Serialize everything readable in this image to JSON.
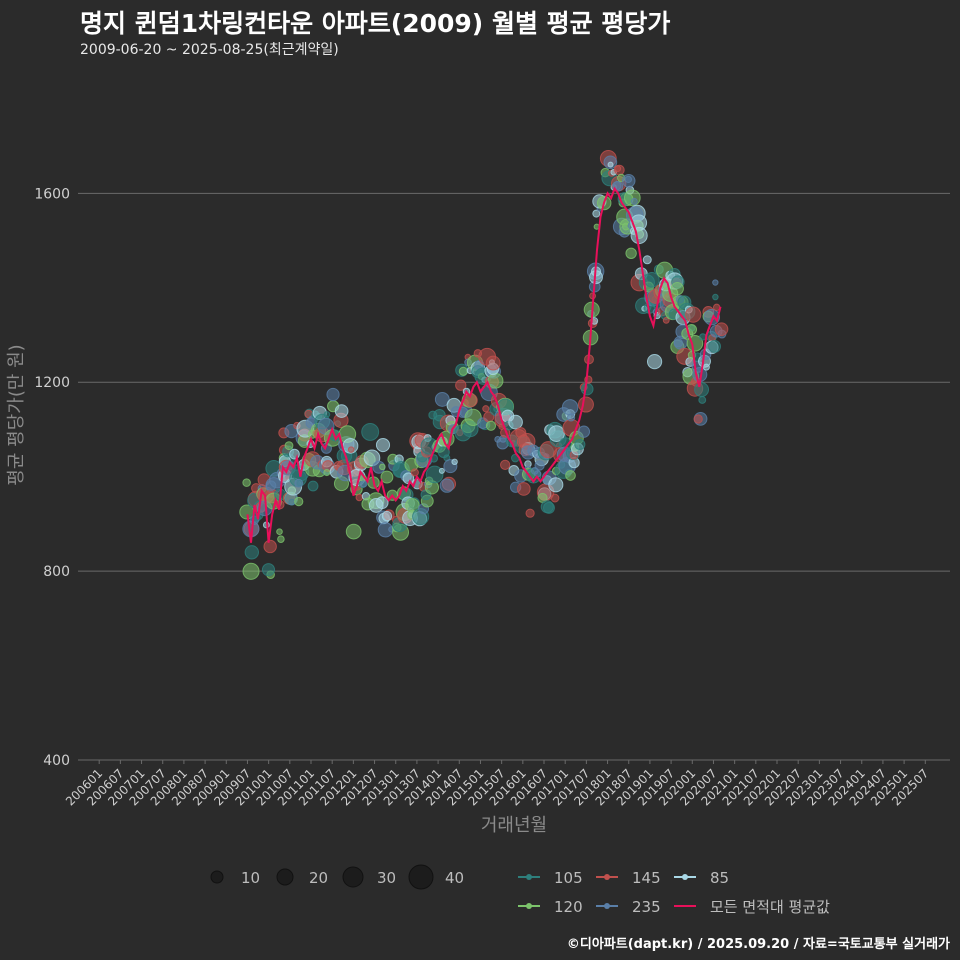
{
  "header": {
    "title": "명지 퀸덤1차링컨타운 아파트(2009) 월별 평균 평당가",
    "subtitle": "2009-06-20 ~ 2025-08-25(최근계약일)",
    "caption": "©디아파트(dapt.kr) / 2025.09.20 / 자료=국토교통부 실거래가"
  },
  "chart_data": {
    "type": "line",
    "xlabel": "거래년월",
    "ylabel": "평균 평당가(만 원)",
    "x_range": [
      "2005-07",
      "2026-02"
    ],
    "ylim": [
      400,
      1840
    ],
    "yticks": [
      400,
      800,
      1200,
      1600
    ],
    "grid": true,
    "xtick_labels": [
      "200601",
      "200607",
      "200701",
      "200707",
      "200801",
      "200807",
      "200901",
      "200907",
      "201001",
      "201007",
      "201101",
      "201107",
      "201201",
      "201207",
      "201301",
      "201307",
      "201401",
      "201407",
      "201501",
      "201507",
      "201601",
      "201607",
      "201701",
      "201707",
      "201801",
      "201807",
      "201901",
      "201907",
      "202001",
      "202007",
      "202101",
      "202107",
      "202201",
      "202207",
      "202301",
      "202307",
      "202401",
      "202407",
      "202501",
      "202507"
    ],
    "size_legend": {
      "title": "",
      "values": [
        10,
        20,
        30,
        40
      ]
    },
    "color_legend": [
      {
        "name": "105",
        "color": "#2e7f7c"
      },
      {
        "name": "145",
        "color": "#c0504d"
      },
      {
        "name": "85",
        "color": "#a9d8e6"
      },
      {
        "name": "120",
        "color": "#7cc36b"
      },
      {
        "name": "235",
        "color": "#5a7fa8"
      },
      {
        "name": "모든 면적대 평균값",
        "color": "#e8105a"
      }
    ],
    "series": [
      {
        "name": "모든 면적대 평균값",
        "color": "#e8105a",
        "points": [
          [
            "2009-07",
            920
          ],
          [
            "2009-08",
            860
          ],
          [
            "2009-09",
            940
          ],
          [
            "2009-10",
            910
          ],
          [
            "2009-11",
            970
          ],
          [
            "2009-12",
            960
          ],
          [
            "2010-01",
            860
          ],
          [
            "2010-02",
            920
          ],
          [
            "2010-03",
            950
          ],
          [
            "2010-04",
            930
          ],
          [
            "2010-05",
            1020
          ],
          [
            "2010-06",
            1010
          ],
          [
            "2010-07",
            1030
          ],
          [
            "2010-08",
            1020
          ],
          [
            "2010-09",
            1040
          ],
          [
            "2010-10",
            1000
          ],
          [
            "2010-11",
            1040
          ],
          [
            "2010-12",
            1060
          ],
          [
            "2011-01",
            1080
          ],
          [
            "2011-02",
            1060
          ],
          [
            "2011-03",
            1090
          ],
          [
            "2011-04",
            1070
          ],
          [
            "2011-05",
            1060
          ],
          [
            "2011-06",
            1080
          ],
          [
            "2011-07",
            1100
          ],
          [
            "2011-08",
            1080
          ],
          [
            "2011-09",
            1090
          ],
          [
            "2011-10",
            1060
          ],
          [
            "2011-11",
            1040
          ],
          [
            "2011-12",
            1010
          ],
          [
            "2012-01",
            960
          ],
          [
            "2012-02",
            980
          ],
          [
            "2012-03",
            1010
          ],
          [
            "2012-04",
            1000
          ],
          [
            "2012-05",
            990
          ],
          [
            "2012-06",
            1020
          ],
          [
            "2012-07",
            980
          ],
          [
            "2012-08",
            970
          ],
          [
            "2012-09",
            990
          ],
          [
            "2012-10",
            960
          ],
          [
            "2012-11",
            950
          ],
          [
            "2012-12",
            960
          ],
          [
            "2013-01",
            950
          ],
          [
            "2013-02",
            960
          ],
          [
            "2013-03",
            980
          ],
          [
            "2013-04",
            970
          ],
          [
            "2013-05",
            990
          ],
          [
            "2013-06",
            980
          ],
          [
            "2013-07",
            1000
          ],
          [
            "2013-08",
            990
          ],
          [
            "2013-09",
            1010
          ],
          [
            "2013-10",
            1020
          ],
          [
            "2013-11",
            1040
          ],
          [
            "2013-12",
            1060
          ],
          [
            "2014-01",
            1080
          ],
          [
            "2014-02",
            1090
          ],
          [
            "2014-03",
            1070
          ],
          [
            "2014-04",
            1060
          ],
          [
            "2014-05",
            1100
          ],
          [
            "2014-06",
            1110
          ],
          [
            "2014-07",
            1140
          ],
          [
            "2014-08",
            1160
          ],
          [
            "2014-09",
            1180
          ],
          [
            "2014-10",
            1170
          ],
          [
            "2014-11",
            1190
          ],
          [
            "2014-12",
            1200
          ],
          [
            "2015-01",
            1180
          ],
          [
            "2015-02",
            1190
          ],
          [
            "2015-03",
            1200
          ],
          [
            "2015-04",
            1180
          ],
          [
            "2015-05",
            1170
          ],
          [
            "2015-06",
            1150
          ],
          [
            "2015-07",
            1120
          ],
          [
            "2015-08",
            1100
          ],
          [
            "2015-09",
            1080
          ],
          [
            "2015-10",
            1070
          ],
          [
            "2015-11",
            1050
          ],
          [
            "2015-12",
            1040
          ],
          [
            "2016-01",
            1020
          ],
          [
            "2016-02",
            1010
          ],
          [
            "2016-03",
            1000
          ],
          [
            "2016-04",
            990
          ],
          [
            "2016-05",
            1000
          ],
          [
            "2016-06",
            990
          ],
          [
            "2016-07",
            1000
          ],
          [
            "2016-08",
            1010
          ],
          [
            "2016-09",
            1020
          ],
          [
            "2016-10",
            1030
          ],
          [
            "2016-11",
            1040
          ],
          [
            "2016-12",
            1050
          ],
          [
            "2017-01",
            1060
          ],
          [
            "2017-02",
            1070
          ],
          [
            "2017-03",
            1080
          ],
          [
            "2017-04",
            1100
          ],
          [
            "2017-05",
            1120
          ],
          [
            "2017-06",
            1150
          ],
          [
            "2017-07",
            1200
          ],
          [
            "2017-08",
            1280
          ],
          [
            "2017-09",
            1380
          ],
          [
            "2017-10",
            1480
          ],
          [
            "2017-11",
            1550
          ],
          [
            "2017-12",
            1580
          ],
          [
            "2018-01",
            1600
          ],
          [
            "2018-02",
            1590
          ],
          [
            "2018-03",
            1610
          ],
          [
            "2018-04",
            1600
          ],
          [
            "2018-05",
            1580
          ],
          [
            "2018-06",
            1570
          ],
          [
            "2018-07",
            1560
          ],
          [
            "2018-08",
            1540
          ],
          [
            "2018-09",
            1520
          ],
          [
            "2018-10",
            1480
          ],
          [
            "2018-11",
            1430
          ],
          [
            "2018-12",
            1380
          ],
          [
            "2019-01",
            1340
          ],
          [
            "2019-02",
            1320
          ],
          [
            "2019-03",
            1360
          ],
          [
            "2019-04",
            1400
          ],
          [
            "2019-05",
            1420
          ],
          [
            "2019-06",
            1410
          ],
          [
            "2019-07",
            1380
          ],
          [
            "2019-08",
            1360
          ],
          [
            "2019-09",
            1350
          ],
          [
            "2019-10",
            1340
          ],
          [
            "2019-11",
            1330
          ],
          [
            "2019-12",
            1300
          ],
          [
            "2020-01",
            1280
          ],
          [
            "2020-02",
            1220
          ],
          [
            "2020-03",
            1190
          ],
          [
            "2020-04",
            1240
          ],
          [
            "2020-05",
            1300
          ],
          [
            "2020-06",
            1320
          ],
          [
            "2020-07",
            1340
          ],
          [
            "2020-08",
            1330
          ],
          [
            "2020-09",
            1360
          ]
        ]
      }
    ]
  }
}
